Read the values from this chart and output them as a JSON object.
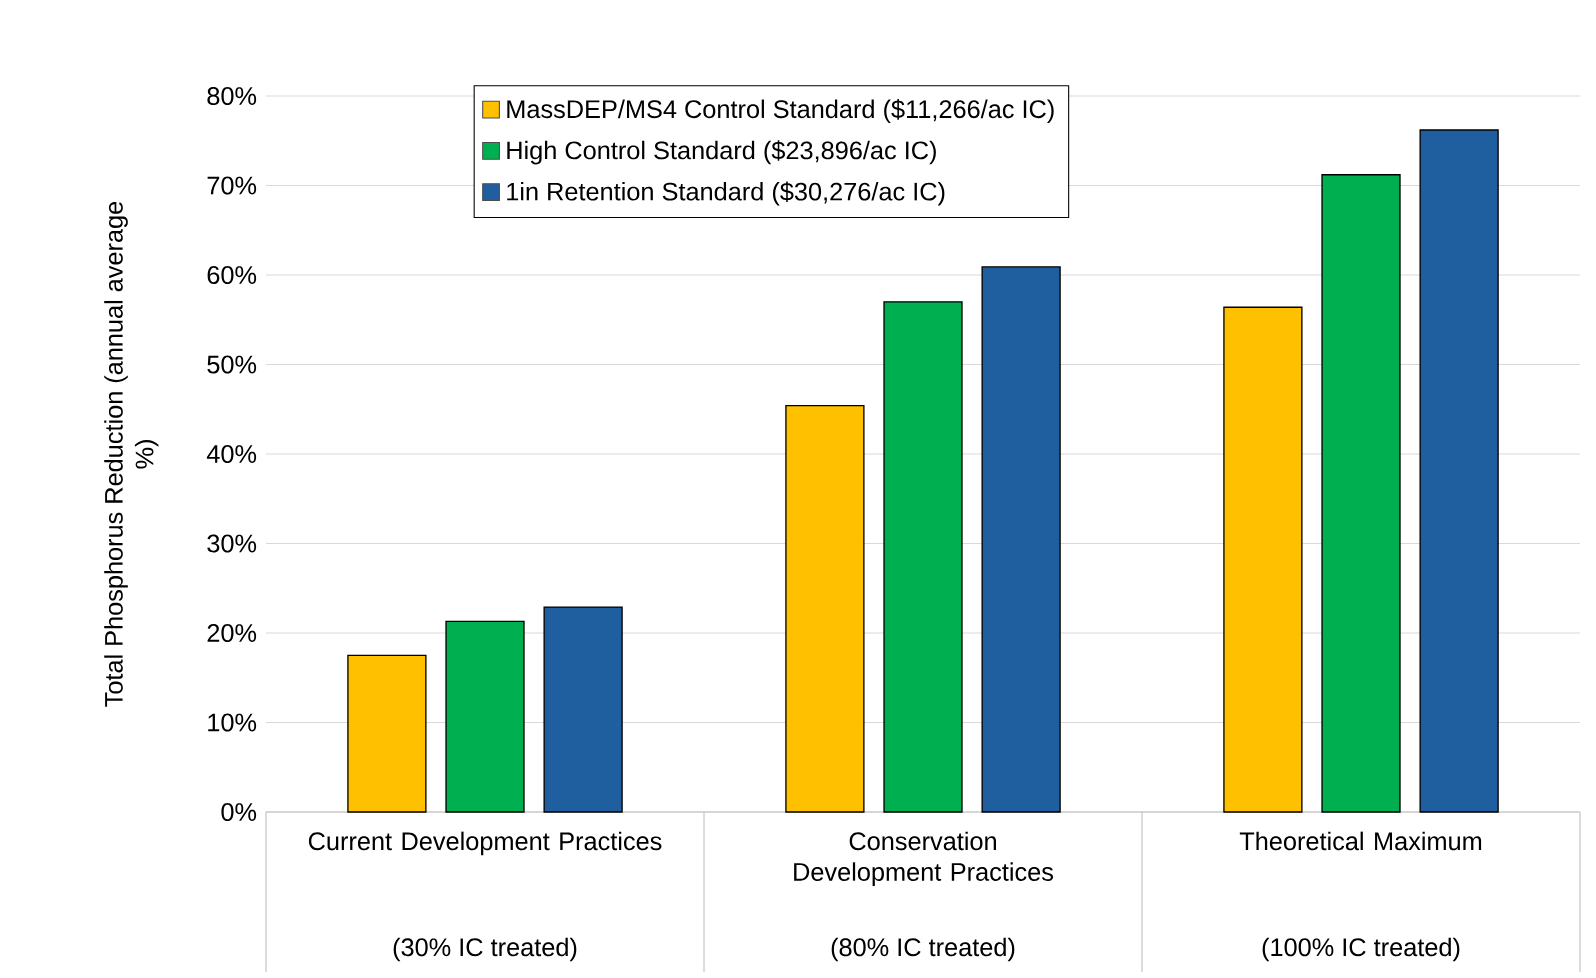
{
  "chart_data": {
    "type": "bar",
    "ylabel": "Total Phosphorus Reduction (annual average %)",
    "categories": [
      "Current Development Practices",
      "Conservation Development Practices",
      "Theoretical Maximum"
    ],
    "annotations": [
      "(30% IC treated)",
      "(80% IC treated)",
      "(100% IC treated)"
    ],
    "series": [
      {
        "name": "MassDEP/MS4 Control Standard ($11,266/ac IC)",
        "color": "#ffc000",
        "values": [
          17.5,
          45.4,
          56.4
        ]
      },
      {
        "name": "High Control Standard ($23,896/ac IC)",
        "color": "#00b050",
        "values": [
          21.3,
          57.0,
          71.2
        ]
      },
      {
        "name": "1in Retention Standard ($30,276/ac IC)",
        "color": "#1f5fa0",
        "values": [
          22.9,
          60.9,
          76.2
        ]
      }
    ],
    "ylim": [
      0,
      80
    ],
    "yticks": [
      {
        "value": 0,
        "label": "0%"
      },
      {
        "value": 10,
        "label": "10%"
      },
      {
        "value": 20,
        "label": "20%"
      },
      {
        "value": 30,
        "label": "30%"
      },
      {
        "value": 40,
        "label": "40%"
      },
      {
        "value": 50,
        "label": "50%"
      },
      {
        "value": 60,
        "label": "60%"
      },
      {
        "value": 70,
        "label": "70%"
      },
      {
        "value": 80,
        "label": "80%"
      }
    ],
    "grid": "y",
    "legend": "top left"
  }
}
